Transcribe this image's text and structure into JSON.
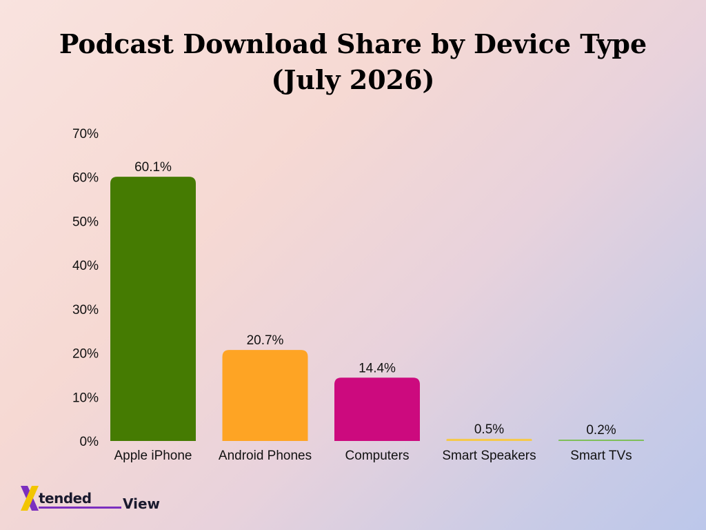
{
  "chart_data": {
    "type": "bar",
    "title_line1": "Podcast Download Share by Device Type",
    "title_line2": "(July 2026)",
    "categories": [
      "Apple iPhone",
      "Android Phones",
      "Computers",
      "Smart Speakers",
      "Smart TVs"
    ],
    "values": [
      60.1,
      20.7,
      14.4,
      0.5,
      0.2
    ],
    "value_labels": [
      "60.1%",
      "20.7%",
      "14.4%",
      "0.5%",
      "0.2%"
    ],
    "colors": [
      "#457b02",
      "#fea424",
      "#cc0a7e",
      "#f5c94b",
      "#7fbf5a"
    ],
    "ylim": [
      0,
      70
    ],
    "yticks": [
      0,
      10,
      20,
      30,
      40,
      50,
      60,
      70
    ],
    "ytick_labels": [
      "0%",
      "10%",
      "20%",
      "30%",
      "40%",
      "50%",
      "60%",
      "70%"
    ],
    "grid": false,
    "legend": "none"
  },
  "logo": {
    "brand_letter": "X",
    "brand_text": "tended",
    "brand_suffix": "View",
    "accent": "#7b2fbf",
    "accent2": "#f2c500"
  }
}
